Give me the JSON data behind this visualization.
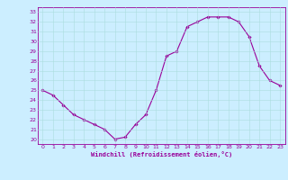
{
  "x": [
    0,
    1,
    2,
    3,
    4,
    5,
    6,
    7,
    8,
    9,
    10,
    11,
    12,
    13,
    14,
    15,
    16,
    17,
    18,
    19,
    20,
    21,
    22,
    23
  ],
  "y": [
    25.0,
    24.5,
    23.5,
    22.5,
    22.0,
    21.5,
    21.0,
    20.0,
    20.2,
    21.5,
    22.5,
    25.0,
    28.5,
    29.0,
    31.5,
    32.0,
    32.5,
    32.5,
    32.5,
    32.0,
    30.5,
    27.5,
    26.0,
    25.5
  ],
  "line_color": "#990099",
  "marker": "D",
  "marker_size": 1.8,
  "bg_color": "#cceeff",
  "grid_color": "#aadddd",
  "xlabel": "Windchill (Refroidissement éolien,°C)",
  "xlabel_color": "#990099",
  "tick_color": "#990099",
  "ylim": [
    19.5,
    33.5
  ],
  "xlim": [
    -0.5,
    23.5
  ],
  "yticks": [
    20,
    21,
    22,
    23,
    24,
    25,
    26,
    27,
    28,
    29,
    30,
    31,
    32,
    33
  ],
  "xticks": [
    0,
    1,
    2,
    3,
    4,
    5,
    6,
    7,
    8,
    9,
    10,
    11,
    12,
    13,
    14,
    15,
    16,
    17,
    18,
    19,
    20,
    21,
    22,
    23
  ],
  "line_width": 0.8,
  "tick_fontsize": 4.5,
  "xlabel_fontsize": 5.0
}
